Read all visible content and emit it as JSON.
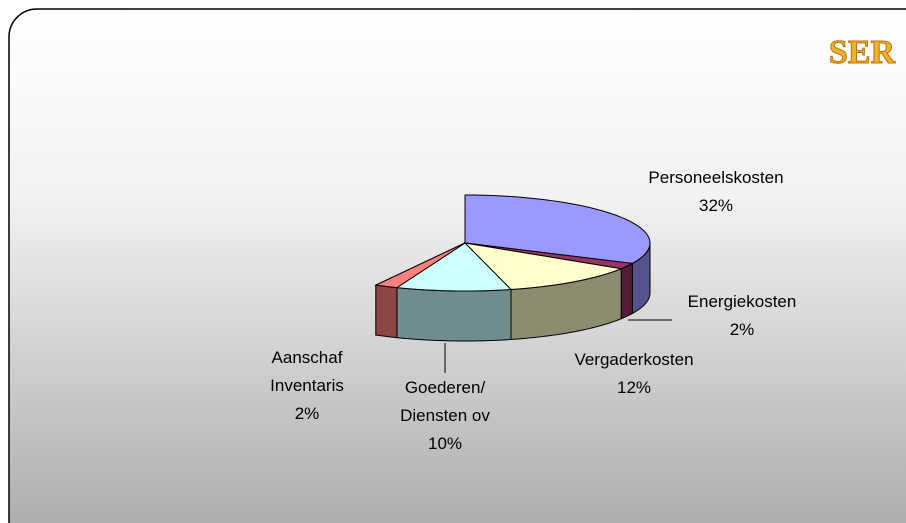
{
  "logo": "SER",
  "chart_data": {
    "type": "pie3d",
    "categories": [
      [
        "Personeelskosten"
      ],
      [
        "Energiekosten"
      ],
      [
        "Vergaderkosten"
      ],
      [
        "Goederen/",
        "Diensten ov"
      ],
      [
        "Aanschaf",
        "Inventaris"
      ]
    ],
    "values": [
      32,
      2,
      12,
      10,
      2
    ],
    "value_labels": [
      "32%",
      "2%",
      "12%",
      "10%",
      "2%"
    ],
    "colors": [
      "#9999ff",
      "#993366",
      "#ffffcc",
      "#ccffff",
      "#ff8080"
    ]
  }
}
